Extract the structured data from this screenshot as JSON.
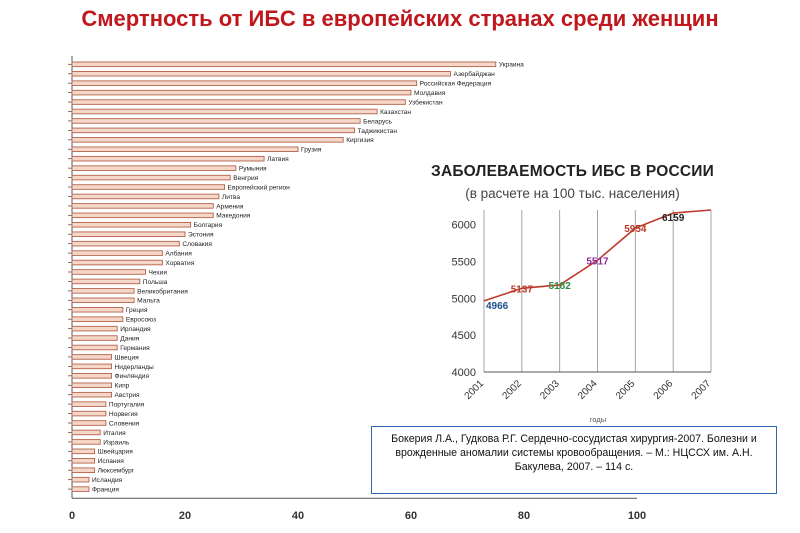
{
  "slide_title": "Смертность от ИБС в европейских странах среди женщин",
  "chart_data": [
    {
      "type": "bar",
      "orientation": "horizontal",
      "categories": [
        "Украина",
        "Азербайджан",
        "Российская Федерация",
        "Молдавия",
        "Узбекистан",
        "Казахстан",
        "Беларусь",
        "Таджикистан",
        "Киргизия",
        "Грузия",
        "Латвия",
        "Румыния",
        "Венгрия",
        "Европейский регион",
        "Литва",
        "Армения",
        "Македония",
        "Болгария",
        "Эстония",
        "Словакия",
        "Албания",
        "Хорватия",
        "Чехия",
        "Польша",
        "Великобритания",
        "Мальта",
        "Греция",
        "Евросоюз",
        "Ирландия",
        "Дания",
        "Германия",
        "Швеция",
        "Нидерланды",
        "Финляндия",
        "Кипр",
        "Австрия",
        "Португалия",
        "Норвегия",
        "Словения",
        "Италия",
        "Израиль",
        "Швейцария",
        "Испания",
        "Люксембург",
        "Исландия",
        "Франция"
      ],
      "values": [
        75,
        67,
        61,
        60,
        59,
        54,
        51,
        50,
        48,
        40,
        34,
        29,
        28,
        27,
        26,
        25,
        25,
        21,
        20,
        19,
        16,
        16,
        13,
        12,
        11,
        11,
        9,
        9,
        8,
        8,
        8,
        7,
        7,
        7,
        7,
        7,
        6,
        6,
        6,
        5,
        5,
        4,
        4,
        4,
        3,
        3
      ],
      "xlim": [
        0,
        100
      ],
      "xticks": [
        "0",
        "20",
        "40",
        "60",
        "80",
        "100"
      ],
      "grid": false,
      "colors": {
        "bar_fill": "#f4d7c8",
        "bar_stroke": "#b5634a",
        "axis": "#555555"
      }
    },
    {
      "type": "line",
      "title": "ЗАБОЛЕВАЕМОСТЬ ИБС В РОССИИ",
      "subtitle": "(в расчете на 100 тыс. населения)",
      "xlabel": "годы",
      "x": [
        "2001",
        "2002",
        "2003",
        "2004",
        "2005",
        "2006",
        "2007"
      ],
      "points": [
        {
          "x": "2001",
          "y": 4966,
          "label": "4966",
          "label_color": "#1f4e8c"
        },
        {
          "x": "2002",
          "y": 5137,
          "label": "5137",
          "label_color": "#b83a2a"
        },
        {
          "x": "2003",
          "y": 5182,
          "label": "5182",
          "label_color": "#2e8b3a"
        },
        {
          "x": "2004",
          "y": 5517,
          "label": "5517",
          "label_color": "#8a2a9a"
        },
        {
          "x": "2005",
          "y": 5954,
          "label": "5954",
          "label_color": "#b83a2a"
        },
        {
          "x": "2006",
          "y": 6159,
          "label": "6159",
          "label_color": "#222222"
        },
        {
          "x": "2007",
          "y": 6200,
          "label": null,
          "label_color": null
        }
      ],
      "ylim": [
        4000,
        6200
      ],
      "yticks": [
        "4000",
        "4500",
        "5000",
        "5500",
        "6000"
      ],
      "grid": "vertical",
      "colors": {
        "line": "#c0392b",
        "grid": "#9a9a9a",
        "axis": "#555555"
      }
    }
  ],
  "citation": "Бокерия Л.А., Гудкова Р.Г. Сердечно-сосудистая хирургия-2007. Болезни и врожденные аномалии системы кровообращения. – М.: НЦССХ им. А.Н. Бакулева, 2007. – 114 с."
}
